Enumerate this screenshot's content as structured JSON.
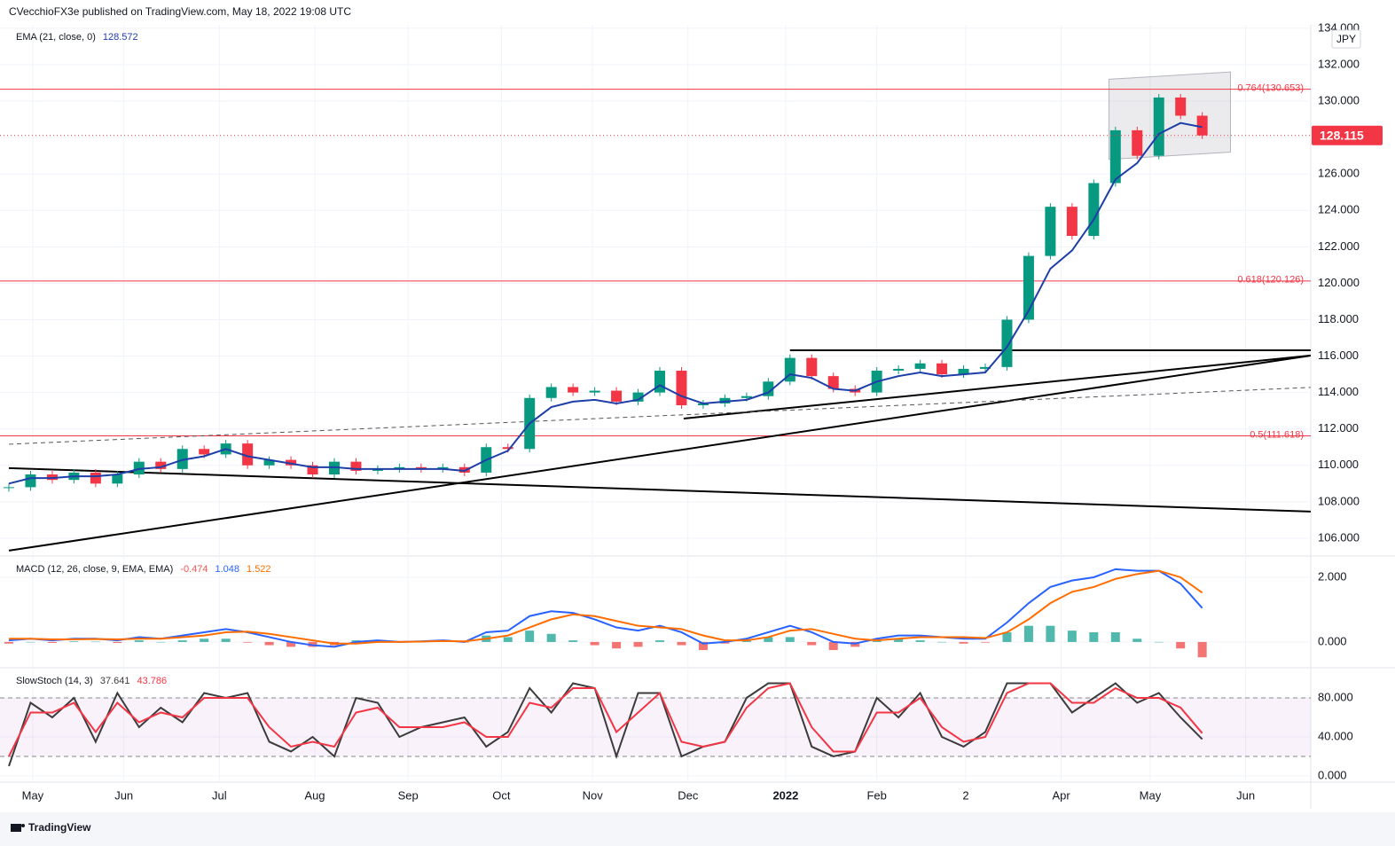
{
  "header": {
    "publisher_line": "CVecchioFX3e published on TradingView.com, May 18, 2022 19:08 UTC"
  },
  "footer": {
    "brand": "TradingView"
  },
  "chart_data": [
    {
      "type": "line",
      "legend_label": "EMA (21, close, 0)",
      "currency": "JPY",
      "xlim": [
        0,
        60
      ],
      "ylim": [
        105.07,
        134.19
      ],
      "grid": true,
      "yticks": [
        {
          "value": 106,
          "label": "106.000"
        },
        {
          "value": 108,
          "label": "108.000"
        },
        {
          "value": 110,
          "label": "110.000"
        },
        {
          "value": 112,
          "label": "112.000"
        },
        {
          "value": 114,
          "label": "114.000"
        },
        {
          "value": 116,
          "label": "116.000"
        },
        {
          "value": 118,
          "label": "118.000"
        },
        {
          "value": 120,
          "label": "120.000"
        },
        {
          "value": 122,
          "label": "122.000"
        },
        {
          "value": 124,
          "label": "124.000"
        },
        {
          "value": 126,
          "label": "126.000"
        },
        {
          "value": 128,
          "label": "128.000"
        },
        {
          "value": 130,
          "label": "130.000"
        },
        {
          "value": 132,
          "label": "132.000"
        },
        {
          "value": 134,
          "label": "134.000"
        }
      ],
      "series": [
        {
          "type": "candle",
          "color": "#089981",
          "down_color": "#f23645",
          "values": [
            108.8,
            109.5,
            109.2,
            109.6,
            109.0,
            109.5,
            110.2,
            109.8,
            110.9,
            110.6,
            111.2,
            110.0,
            110.3,
            110.0,
            109.5,
            110.2,
            109.7,
            109.8,
            109.9,
            109.8,
            109.9,
            109.6,
            111.0,
            110.9,
            113.7,
            114.3,
            114.0,
            114.1,
            113.5,
            114.0,
            115.2,
            113.3,
            113.4,
            113.7,
            113.8,
            114.6,
            115.9,
            114.9,
            114.2,
            114.0,
            115.2,
            115.3,
            115.6,
            115.0,
            115.3,
            115.4,
            118.0,
            121.5,
            124.2,
            122.6,
            125.5,
            128.4,
            127.0,
            130.2,
            129.2,
            128.115
          ]
        },
        {
          "name": "EMA (21, close, 0)",
          "color": "#1e3ea8",
          "values": [
            109.0,
            109.3,
            109.3,
            109.4,
            109.4,
            109.5,
            109.8,
            109.9,
            110.3,
            110.5,
            110.9,
            110.5,
            110.3,
            110.1,
            109.9,
            109.9,
            109.8,
            109.8,
            109.8,
            109.8,
            109.8,
            109.7,
            110.3,
            110.8,
            112.3,
            113.2,
            113.5,
            113.6,
            113.4,
            113.6,
            114.4,
            113.8,
            113.4,
            113.5,
            113.6,
            114.0,
            115.0,
            114.8,
            114.2,
            114.1,
            114.6,
            114.9,
            115.1,
            114.9,
            115.0,
            115.1,
            116.5,
            118.5,
            120.8,
            121.8,
            123.5,
            125.7,
            126.6,
            128.2,
            128.8,
            128.572
          ]
        }
      ],
      "levels": [
        {
          "label": "0.764(130.653)",
          "value": 130.653,
          "color": "#f23645"
        },
        {
          "label": "0.618(120.126)",
          "value": 120.126,
          "color": "#f23645"
        },
        {
          "label": "0.5(111.618)",
          "value": 111.618,
          "color": "#f23645"
        }
      ],
      "trendlines": [
        {
          "x": [
            0,
            60
          ],
          "y": [
            109.85,
            107.46
          ]
        },
        {
          "x": [
            0,
            60
          ],
          "y": [
            105.32,
            116.03
          ]
        },
        {
          "x": [
            31.1,
            60
          ],
          "y": [
            112.57,
            116.03
          ]
        },
        {
          "x": [
            36.0,
            60
          ],
          "y": [
            116.32,
            116.32
          ]
        },
        {
          "x": [
            0,
            60
          ],
          "y": [
            111.16,
            114.28
          ],
          "dashed": true
        }
      ],
      "channel": {
        "x": [
          50.7,
          56.3
        ],
        "upper": [
          131.2,
          131.6
        ],
        "lower": [
          126.8,
          127.2
        ]
      }
    },
    {
      "type": "line",
      "legend_label": "MACD (12, 26, close, 9, EMA, EMA)",
      "xlim": [
        0,
        60
      ],
      "ylim": [
        -0.77,
        2.63
      ],
      "grid": true,
      "yticks": [
        {
          "value": 0,
          "label": "0.000"
        },
        {
          "value": 2,
          "label": "2.000"
        }
      ],
      "series": [
        {
          "type": "bar",
          "color": "#26a69a",
          "down_color": "#ef5350",
          "values": [
            -0.05,
            0.0,
            -0.03,
            0.02,
            0.01,
            -0.03,
            0.05,
            0.0,
            0.05,
            0.1,
            0.1,
            -0.02,
            -0.1,
            -0.15,
            -0.15,
            -0.1,
            0.05,
            0.05,
            0.0,
            0.01,
            0.02,
            -0.02,
            0.2,
            0.15,
            0.35,
            0.25,
            0.05,
            -0.1,
            -0.2,
            -0.15,
            0.05,
            -0.1,
            -0.25,
            -0.05,
            0.05,
            0.15,
            0.15,
            -0.1,
            -0.25,
            -0.15,
            0.05,
            0.1,
            0.05,
            0.0,
            -0.05,
            -0.02,
            0.3,
            0.5,
            0.5,
            0.35,
            0.3,
            0.3,
            0.1,
            0.0,
            -0.2,
            -0.474
          ]
        },
        {
          "color": "#2962ff",
          "values": [
            0.05,
            0.1,
            0.05,
            0.1,
            0.1,
            0.05,
            0.15,
            0.1,
            0.2,
            0.3,
            0.4,
            0.3,
            0.15,
            0.0,
            -0.1,
            -0.15,
            0.0,
            0.05,
            0.0,
            0.02,
            0.05,
            0.0,
            0.3,
            0.35,
            0.8,
            0.95,
            0.9,
            0.7,
            0.45,
            0.35,
            0.5,
            0.3,
            -0.05,
            0.0,
            0.1,
            0.3,
            0.5,
            0.3,
            0.0,
            -0.05,
            0.1,
            0.2,
            0.2,
            0.15,
            0.1,
            0.1,
            0.6,
            1.2,
            1.7,
            1.9,
            2.0,
            2.25,
            2.2,
            2.2,
            1.8,
            1.048
          ]
        },
        {
          "color": "#ff6d00",
          "values": [
            0.1,
            0.1,
            0.08,
            0.08,
            0.09,
            0.08,
            0.1,
            0.1,
            0.15,
            0.2,
            0.3,
            0.32,
            0.25,
            0.15,
            0.05,
            -0.05,
            -0.05,
            0.0,
            0.0,
            0.01,
            0.03,
            0.02,
            0.1,
            0.2,
            0.45,
            0.7,
            0.85,
            0.8,
            0.65,
            0.5,
            0.45,
            0.4,
            0.2,
            0.05,
            0.05,
            0.15,
            0.35,
            0.4,
            0.25,
            0.1,
            0.05,
            0.1,
            0.15,
            0.15,
            0.15,
            0.12,
            0.3,
            0.7,
            1.2,
            1.55,
            1.7,
            1.95,
            2.1,
            2.2,
            2.0,
            1.522
          ]
        }
      ]
    },
    {
      "type": "line",
      "legend_label": "SlowStoch (14, 3)",
      "xlim": [
        0,
        60
      ],
      "ylim": [
        -6.4,
        110
      ],
      "grid": true,
      "band": [
        20,
        80
      ],
      "yticks": [
        {
          "value": 0,
          "label": "0.000"
        },
        {
          "value": 40,
          "label": "40.000"
        },
        {
          "value": 80,
          "label": "80.000"
        }
      ],
      "xticks": [
        {
          "value": 1.1,
          "label": "May"
        },
        {
          "value": 5.3,
          "label": "Jun"
        },
        {
          "value": 9.7,
          "label": "Jul"
        },
        {
          "value": 14.1,
          "label": "Aug"
        },
        {
          "value": 18.4,
          "label": "Sep"
        },
        {
          "value": 22.7,
          "label": "Oct"
        },
        {
          "value": 26.9,
          "label": "Nov"
        },
        {
          "value": 31.3,
          "label": "Dec"
        },
        {
          "value": 35.8,
          "label": "2022"
        },
        {
          "value": 40.0,
          "label": "Feb"
        },
        {
          "value": 44.1,
          "label": "2"
        },
        {
          "value": 48.5,
          "label": "Apr"
        },
        {
          "value": 52.6,
          "label": "May"
        },
        {
          "value": 57.0,
          "label": "Jun"
        }
      ],
      "series": [
        {
          "color": "#3c3c3c",
          "values": [
            10,
            75,
            60,
            80,
            35,
            85,
            50,
            70,
            55,
            85,
            80,
            85,
            35,
            25,
            40,
            20,
            80,
            75,
            40,
            50,
            55,
            60,
            30,
            45,
            90,
            65,
            95,
            90,
            20,
            85,
            85,
            20,
            30,
            35,
            80,
            95,
            95,
            30,
            20,
            25,
            80,
            60,
            85,
            40,
            30,
            45,
            95,
            95,
            95,
            65,
            80,
            95,
            75,
            85,
            60,
            37.641
          ]
        },
        {
          "color": "#f23645",
          "values": [
            20,
            65,
            65,
            75,
            45,
            75,
            55,
            65,
            60,
            80,
            80,
            80,
            50,
            30,
            35,
            30,
            65,
            70,
            50,
            50,
            50,
            55,
            40,
            40,
            75,
            70,
            90,
            90,
            45,
            65,
            85,
            35,
            30,
            35,
            70,
            90,
            95,
            50,
            25,
            25,
            65,
            65,
            80,
            50,
            35,
            40,
            85,
            95,
            95,
            75,
            75,
            90,
            80,
            80,
            70,
            43.786
          ]
        }
      ]
    }
  ]
}
